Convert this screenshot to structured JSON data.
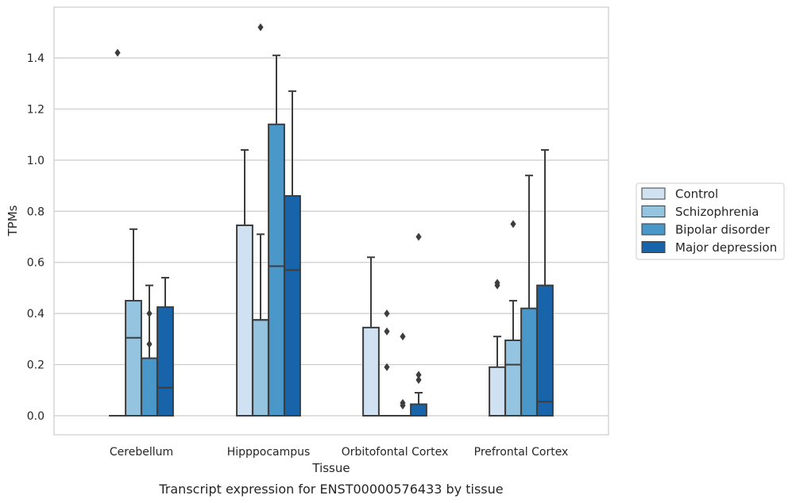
{
  "chart_data": {
    "type": "box",
    "caption": "Transcript expression for ENST00000576433 by tissue",
    "xlabel": "Tissue",
    "ylabel": "TPMs",
    "ylim": [
      -0.07,
      1.6
    ],
    "yticks": [
      0.0,
      0.2,
      0.4,
      0.6,
      0.8,
      1.0,
      1.2,
      1.4
    ],
    "ytick_labels": [
      "0.0",
      "0.2",
      "0.4",
      "0.6",
      "0.8",
      "1.0",
      "1.2",
      "1.4"
    ],
    "grid": "horizontal",
    "legend_position": "right",
    "categories": [
      "Cerebellum",
      "Hipppocampus",
      "Orbitofontal Cortex",
      "Prefrontal Cortex"
    ],
    "series": [
      {
        "name": "Control",
        "color": "#d0e1f2",
        "boxes": [
          {
            "q1": 0.0,
            "median": 0.0,
            "q3": 0.0,
            "whisker_low": 0.0,
            "whisker_high": 0.0,
            "outliers": [
              1.42
            ]
          },
          {
            "q1": 0.0,
            "median": 0.0,
            "q3": 0.745,
            "whisker_low": 0.0,
            "whisker_high": 1.04,
            "outliers": []
          },
          {
            "q1": 0.0,
            "median": 0.0,
            "q3": 0.345,
            "whisker_low": 0.0,
            "whisker_high": 0.62,
            "outliers": []
          },
          {
            "q1": 0.0,
            "median": 0.0,
            "q3": 0.19,
            "whisker_low": 0.0,
            "whisker_high": 0.31,
            "outliers": [
              0.51,
              0.52
            ]
          }
        ]
      },
      {
        "name": "Schizophrenia",
        "color": "#94c4df",
        "boxes": [
          {
            "q1": 0.0,
            "median": 0.305,
            "q3": 0.45,
            "whisker_low": 0.0,
            "whisker_high": 0.73,
            "outliers": []
          },
          {
            "q1": 0.0,
            "median": 0.375,
            "q3": 0.375,
            "whisker_low": 0.0,
            "whisker_high": 0.71,
            "outliers": [
              1.52
            ]
          },
          {
            "q1": 0.0,
            "median": 0.0,
            "q3": 0.0,
            "whisker_low": 0.0,
            "whisker_high": 0.0,
            "outliers": [
              0.4,
              0.33,
              0.19
            ]
          },
          {
            "q1": 0.0,
            "median": 0.2,
            "q3": 0.295,
            "whisker_low": 0.0,
            "whisker_high": 0.45,
            "outliers": [
              0.75
            ]
          }
        ]
      },
      {
        "name": "Bipolar disorder",
        "color": "#4a98c9",
        "boxes": [
          {
            "q1": 0.0,
            "median": 0.0,
            "q3": 0.225,
            "whisker_low": 0.0,
            "whisker_high": 0.51,
            "outliers": [
              0.4,
              0.28
            ]
          },
          {
            "q1": 0.0,
            "median": 0.585,
            "q3": 1.14,
            "whisker_low": 0.0,
            "whisker_high": 1.41,
            "outliers": []
          },
          {
            "q1": 0.0,
            "median": 0.0,
            "q3": 0.0,
            "whisker_low": 0.0,
            "whisker_high": 0.0,
            "outliers": [
              0.31,
              0.05,
              0.04
            ]
          },
          {
            "q1": 0.0,
            "median": 0.0,
            "q3": 0.42,
            "whisker_low": 0.0,
            "whisker_high": 0.94,
            "outliers": []
          }
        ]
      },
      {
        "name": "Major depression",
        "color": "#1764ab",
        "boxes": [
          {
            "q1": 0.0,
            "median": 0.11,
            "q3": 0.425,
            "whisker_low": 0.0,
            "whisker_high": 0.54,
            "outliers": []
          },
          {
            "q1": 0.0,
            "median": 0.57,
            "q3": 0.86,
            "whisker_low": 0.0,
            "whisker_high": 1.27,
            "outliers": []
          },
          {
            "q1": 0.0,
            "median": 0.0,
            "q3": 0.045,
            "whisker_low": 0.0,
            "whisker_high": 0.09,
            "outliers": [
              0.7,
              0.16,
              0.14
            ]
          },
          {
            "q1": 0.0,
            "median": 0.055,
            "q3": 0.51,
            "whisker_low": 0.0,
            "whisker_high": 1.04,
            "outliers": []
          }
        ]
      }
    ]
  }
}
